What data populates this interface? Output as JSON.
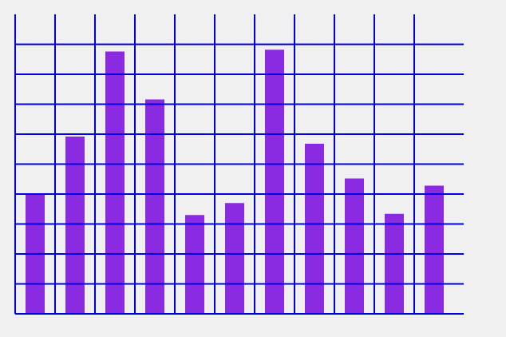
{
  "chart_data": {
    "type": "bar",
    "title": "",
    "xlabel": "",
    "ylabel": "",
    "values": [
      40,
      59.2,
      87.6,
      71.6,
      33,
      37,
      88.2,
      56.8,
      45.2,
      33.4,
      42.8
    ],
    "ylim": [
      0,
      100
    ],
    "grid": true,
    "bar_color": "#8a2be2",
    "grid_color": "#0000dd",
    "background_color": "#f0f0f0"
  }
}
